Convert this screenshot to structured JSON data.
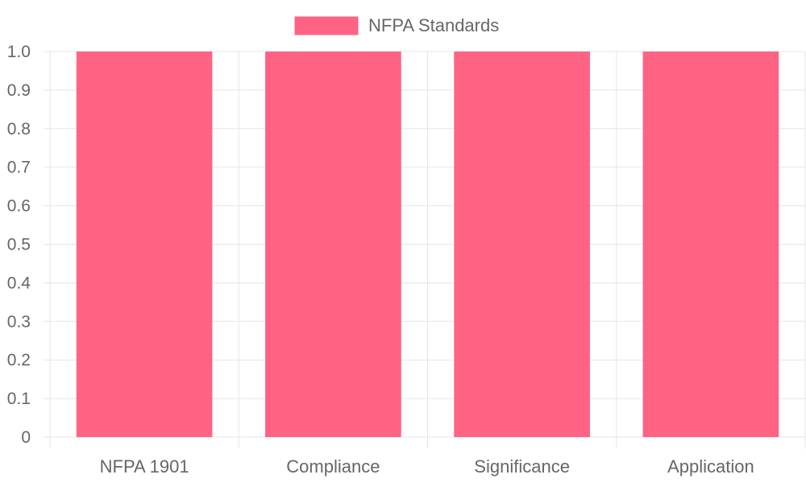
{
  "chart_data": {
    "type": "bar",
    "categories": [
      "NFPA 1901",
      "Compliance",
      "Significance",
      "Application"
    ],
    "series": [
      {
        "name": "NFPA Standards",
        "values": [
          1,
          1,
          1,
          1
        ],
        "color": "#ff6384"
      }
    ],
    "ylim": [
      0,
      1.0
    ],
    "yticks": [
      "0",
      "0.1",
      "0.2",
      "0.3",
      "0.4",
      "0.5",
      "0.6",
      "0.7",
      "0.8",
      "0.9",
      "1.0"
    ],
    "grid": true,
    "legend": "top-center",
    "colors": {
      "grid": "#e5e5e5",
      "axis_text": "#666666",
      "legend_text": "#666666"
    }
  }
}
